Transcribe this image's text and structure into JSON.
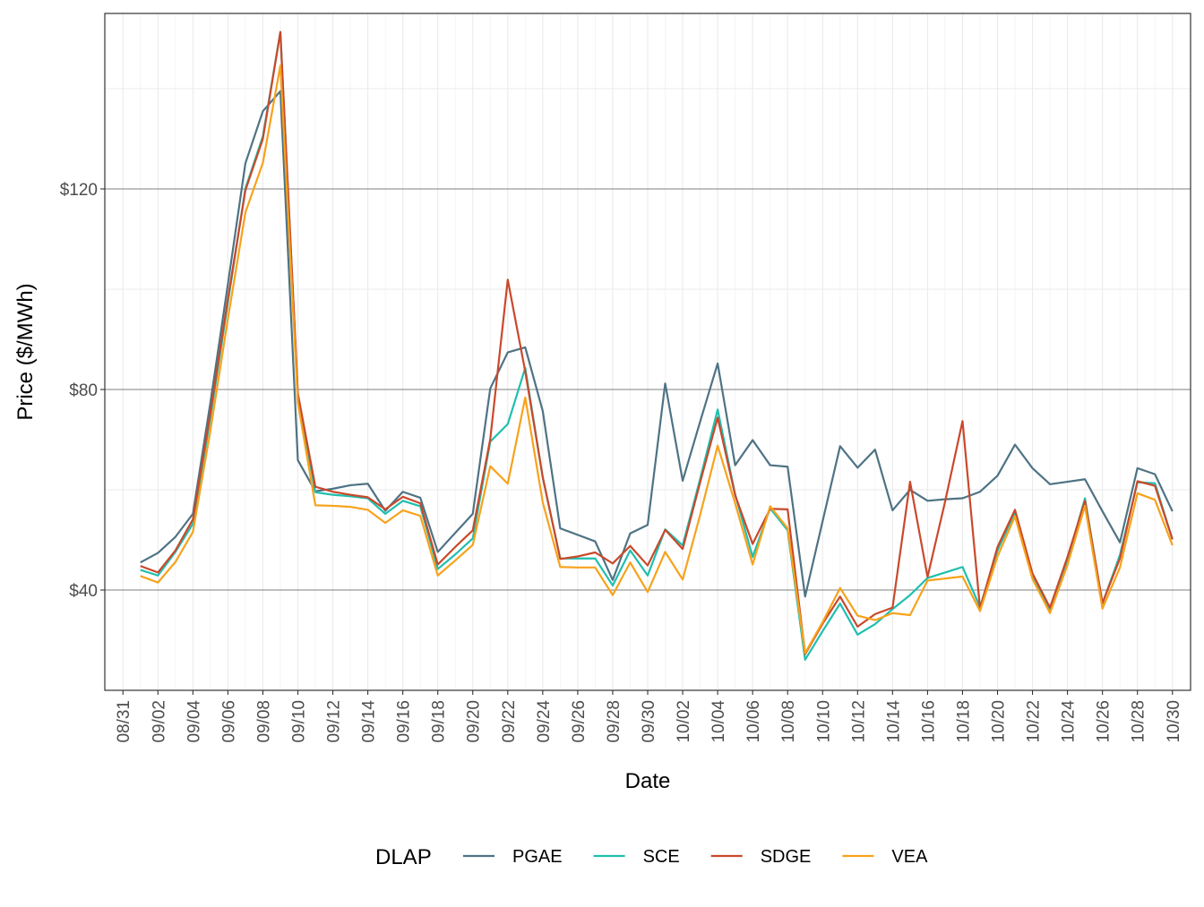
{
  "chart_data": {
    "type": "line",
    "title": "",
    "xlabel": "Date",
    "ylabel": "Price ($/MWh)",
    "x_axis": {
      "start": "2023-08-31",
      "end": "2023-10-30",
      "tick_labels": [
        "08/31",
        "09/02",
        "09/04",
        "09/06",
        "09/08",
        "09/10",
        "09/12",
        "09/14",
        "09/16",
        "09/18",
        "09/20",
        "09/22",
        "09/24",
        "09/26",
        "09/28",
        "09/30",
        "10/02",
        "10/04",
        "10/06",
        "10/08",
        "10/10",
        "10/12",
        "10/14",
        "10/16",
        "10/18",
        "10/20",
        "10/22",
        "10/24",
        "10/26",
        "10/28",
        "10/30"
      ]
    },
    "y_axis": {
      "range": [
        20,
        155
      ],
      "tick_values": [
        40,
        80,
        120
      ],
      "tick_labels": [
        "$40",
        "$80",
        "$120"
      ]
    },
    "grid": true,
    "legend": {
      "title": "DLAP",
      "position": "bottom"
    },
    "x": [
      "09/01",
      "09/02",
      "09/03",
      "09/04",
      "09/05",
      "09/06",
      "09/07",
      "09/08",
      "09/09",
      "09/10",
      "09/11",
      "09/12",
      "09/13",
      "09/14",
      "09/15",
      "09/16",
      "09/17",
      "09/18",
      "09/19",
      "09/20",
      "09/21",
      "09/22",
      "09/23",
      "09/24",
      "09/25",
      "09/26",
      "09/27",
      "09/28",
      "09/29",
      "09/30",
      "10/01",
      "10/02",
      "10/03",
      "10/04",
      "10/05",
      "10/06",
      "10/07",
      "10/08",
      "10/09",
      "10/10",
      "10/11",
      "10/12",
      "10/13",
      "10/14",
      "10/15",
      "10/16",
      "10/17",
      "10/18",
      "10/19",
      "10/20",
      "10/21",
      "10/22",
      "10/23",
      "10/24",
      "10/25",
      "10/26",
      "10/27",
      "10/28",
      "10/29",
      "10/30"
    ],
    "series": [
      {
        "name": "PGAE",
        "color": "#4e7384",
        "values": [
          45.5,
          47.4,
          50.6,
          55.2,
          77.4,
          101.0,
          125.1,
          135.5,
          139.5,
          65.9,
          59.7,
          60.2,
          60.9,
          61.2,
          55.8,
          59.6,
          58.4,
          47.6,
          51.4,
          55.2,
          80.2,
          87.4,
          88.4,
          75.7,
          52.3,
          51.0,
          49.7,
          42.0,
          51.3,
          53.0,
          81.2,
          61.8,
          73.6,
          85.2,
          64.9,
          69.9,
          64.9,
          64.6,
          38.7,
          53.7,
          68.7,
          64.4,
          68.0,
          55.9,
          60.0,
          57.8,
          58.1,
          58.3,
          59.6,
          62.8,
          69.0,
          64.3,
          61.1,
          61.6,
          62.1,
          55.7,
          49.5,
          64.3,
          63.1,
          55.7
        ]
      },
      {
        "name": "SCE",
        "color": "#1fbfae",
        "values": [
          44.0,
          42.9,
          47.6,
          53.2,
          74.4,
          97.3,
          120.1,
          130.5,
          151.3,
          79.0,
          59.5,
          59.0,
          58.7,
          58.3,
          55.2,
          57.8,
          56.7,
          44.2,
          47.1,
          50.3,
          69.6,
          73.1,
          84.3,
          62.5,
          46.3,
          46.3,
          46.3,
          40.9,
          47.9,
          42.9,
          52.1,
          48.9,
          62.2,
          76.0,
          59.1,
          46.6,
          56.3,
          51.9,
          26.1,
          31.8,
          37.3,
          31.1,
          33.2,
          36.2,
          39.0,
          42.4,
          43.5,
          44.6,
          36.6,
          47.9,
          55.5,
          42.9,
          35.8,
          46.0,
          58.3,
          37.3,
          47.0,
          61.5,
          61.3,
          50.1
        ]
      },
      {
        "name": "SDGE",
        "color": "#c9492b",
        "values": [
          44.8,
          43.5,
          47.9,
          54.1,
          75.4,
          98.1,
          119.7,
          130.0,
          151.3,
          79.2,
          60.6,
          59.6,
          59.0,
          58.5,
          56.1,
          58.6,
          57.3,
          45.1,
          48.6,
          51.9,
          70.1,
          101.9,
          83.6,
          62.5,
          46.2,
          46.7,
          47.5,
          45.3,
          48.8,
          44.9,
          52.0,
          48.2,
          61.5,
          74.4,
          58.9,
          49.2,
          56.2,
          56.1,
          27.2,
          33.3,
          38.7,
          32.7,
          35.2,
          36.5,
          61.6,
          42.6,
          57.6,
          73.7,
          36.3,
          48.6,
          56.0,
          43.3,
          36.5,
          46.6,
          57.8,
          37.4,
          46.3,
          61.7,
          60.8,
          50.1
        ]
      },
      {
        "name": "VEA",
        "color": "#f7a21b",
        "values": [
          42.8,
          41.5,
          45.6,
          51.6,
          71.8,
          94.1,
          115.3,
          125.2,
          144.6,
          77.4,
          56.9,
          56.8,
          56.6,
          56.0,
          53.4,
          55.9,
          54.8,
          42.9,
          45.9,
          49.0,
          64.7,
          61.2,
          78.4,
          57.5,
          44.6,
          44.5,
          44.5,
          39.0,
          45.5,
          39.6,
          47.6,
          42.1,
          55.0,
          68.8,
          57.3,
          45.1,
          56.7,
          52.3,
          27.4,
          33.6,
          40.4,
          34.9,
          34.0,
          35.4,
          35.0,
          41.9,
          42.3,
          42.7,
          35.8,
          46.7,
          54.7,
          42.2,
          35.4,
          45.0,
          56.8,
          36.3,
          44.5,
          59.3,
          58.0,
          48.9
        ]
      }
    ]
  }
}
